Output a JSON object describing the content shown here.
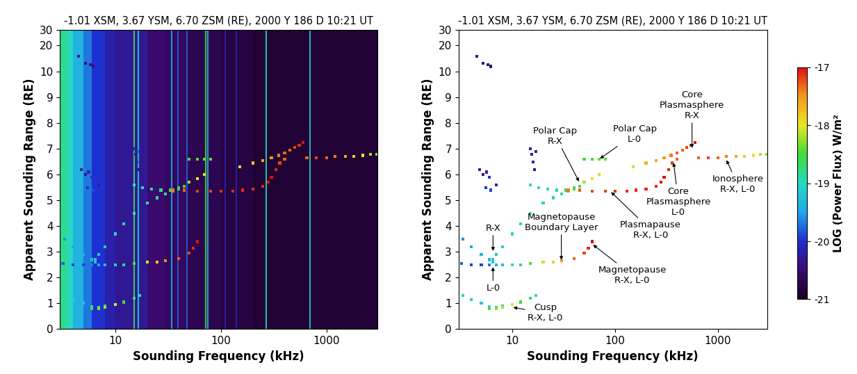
{
  "chart_data": [
    {
      "type": "heatmap",
      "title": "-1.01 XSM, 3.67 YSM, 6.70 ZSM (RE), 2000 Y 186 D 10:21 UT",
      "x_label": "Sounding Frequency (kHz)",
      "y_label": "Apparent Sounding Range (RE)",
      "log": "x",
      "xlim": [
        3,
        3000
      ],
      "ylim": [
        0,
        30
      ],
      "xticks": [
        10,
        100,
        1000
      ],
      "yticks": [
        0,
        1,
        2,
        3,
        4,
        5,
        6,
        7,
        8,
        9,
        10,
        20,
        30
      ],
      "color_range": [
        -21,
        -17
      ],
      "background": {
        "frequency_edges": [
          3,
          3.5,
          4,
          5,
          6,
          8,
          10,
          15,
          20,
          30,
          50,
          100,
          200,
          500,
          1000,
          2000,
          3000
        ],
        "values": [
          -18.8,
          -19.0,
          -19.4,
          -19.7,
          -20.0,
          -20.2,
          -20.3,
          -20.3,
          -20.5,
          -20.6,
          -20.7,
          -20.8,
          -20.9,
          -20.9,
          -20.9,
          -20.9
        ]
      },
      "interference": {
        "frequencies": [
          15,
          16.5,
          34,
          39,
          48,
          72,
          75,
          110,
          140,
          270,
          700
        ],
        "values": [
          -18.6,
          -19.2,
          -19.5,
          -19.8,
          -19.8,
          -18.5,
          -19.3,
          -20.2,
          -20.2,
          -19.0,
          -19.2
        ]
      },
      "series": [
        {
          "x": [
            3.3,
            4,
            5,
            6,
            7,
            8,
            10,
            12,
            15,
            17
          ],
          "y": [
            1.3,
            1.15,
            1.0,
            0.88,
            0.85,
            0.9,
            0.95,
            1.05,
            1.2,
            1.3
          ],
          "power": [
            -19.0,
            -19.1,
            -19.2,
            -19.0,
            -18.8,
            -18.6,
            -18.4,
            -18.5,
            -18.7,
            -18.9
          ]
        },
        {
          "x": [
            6,
            7,
            8,
            10
          ],
          "y": [
            0.8,
            0.8,
            0.85,
            0.95
          ],
          "power": [
            -18.5,
            -18.3,
            -18.2,
            -18.0
          ]
        },
        {
          "x": [
            3.2,
            4,
            5,
            6,
            7,
            8,
            10,
            12,
            15,
            20,
            25,
            30,
            40,
            50,
            55,
            60
          ],
          "y": [
            2.55,
            2.5,
            2.5,
            2.5,
            2.5,
            2.5,
            2.5,
            2.5,
            2.55,
            2.6,
            2.6,
            2.65,
            2.75,
            2.95,
            3.15,
            3.4
          ],
          "power": [
            -19.8,
            -19.9,
            -19.9,
            -19.7,
            -19.5,
            -19.3,
            -19.0,
            -18.8,
            -18.5,
            -18.1,
            -17.8,
            -17.5,
            -17.3,
            -17.2,
            -17.1,
            -17.0
          ]
        },
        {
          "x": [
            3.3,
            4,
            5,
            6,
            6.5
          ],
          "y": [
            3.5,
            3.2,
            2.9,
            2.7,
            2.6
          ],
          "power": [
            -19.6,
            -19.5,
            -19.4,
            -19.3,
            -19.2
          ]
        },
        {
          "x": [
            6.5,
            7,
            8,
            10,
            12,
            15,
            20,
            25,
            30,
            35,
            40,
            45
          ],
          "y": [
            2.7,
            2.9,
            3.2,
            3.7,
            4.1,
            4.5,
            4.9,
            5.1,
            5.25,
            5.35,
            5.45,
            5.55
          ],
          "power": [
            -19.2,
            -19.2,
            -19.1,
            -19.0,
            -19.0,
            -18.9,
            -18.9,
            -18.8,
            -18.8,
            -18.7,
            -18.6,
            -18.5
          ]
        },
        {
          "x": [
            15,
            18,
            22,
            27,
            33,
            40,
            50,
            60,
            70
          ],
          "y": [
            5.6,
            5.5,
            5.45,
            5.4,
            5.4,
            5.5,
            5.7,
            5.85,
            6.0
          ],
          "power": [
            -19.0,
            -19.0,
            -18.9,
            -18.8,
            -18.7,
            -18.5,
            -18.2,
            -18.0,
            -17.9
          ]
        },
        {
          "x": [
            35,
            45,
            60,
            80,
            100,
            130,
            160,
            200,
            250,
            280,
            300,
            330,
            360,
            400
          ],
          "y": [
            5.4,
            5.4,
            5.35,
            5.35,
            5.35,
            5.35,
            5.4,
            5.45,
            5.55,
            5.7,
            5.9,
            6.2,
            6.45,
            6.6
          ],
          "power": [
            -17.4,
            -17.3,
            -17.2,
            -17.2,
            -17.1,
            -17.1,
            -17.1,
            -17.1,
            -17.1,
            -17.0,
            -17.0,
            -17.1,
            -17.2,
            -17.3
          ]
        },
        {
          "x": [
            50,
            60,
            70,
            80
          ],
          "y": [
            6.6,
            6.6,
            6.6,
            6.6
          ],
          "power": [
            -18.5,
            -18.5,
            -18.4,
            -18.4
          ]
        },
        {
          "x": [
            150,
            200,
            250,
            300,
            350,
            400,
            450,
            500,
            550,
            600
          ],
          "y": [
            6.3,
            6.45,
            6.55,
            6.65,
            6.75,
            6.85,
            6.95,
            7.05,
            7.15,
            7.25
          ],
          "power": [
            -17.9,
            -17.7,
            -17.6,
            -17.5,
            -17.4,
            -17.3,
            -17.3,
            -17.2,
            -17.1,
            -17.0
          ]
        },
        {
          "x": [
            650,
            800,
            1000,
            1200,
            1500,
            1800,
            2200,
            2600,
            3000
          ],
          "y": [
            6.65,
            6.65,
            6.65,
            6.7,
            6.7,
            6.7,
            6.75,
            6.8,
            6.8
          ],
          "power": [
            -17.3,
            -17.2,
            -17.3,
            -17.4,
            -17.6,
            -17.8,
            -18.0,
            -18.2,
            -18.3
          ]
        },
        {
          "x": [
            4.5,
            5.2,
            5.8,
            6.2
          ],
          "y": [
            15,
            12.5,
            12,
            11.5
          ],
          "power": [
            -20.3,
            -20.5,
            -20.4,
            -20.4
          ]
        },
        {
          "x": [
            15,
            15.5,
            16,
            17,
            16.5
          ],
          "y": [
            7.0,
            6.8,
            6.5,
            6.9,
            6.2
          ],
          "power": [
            -20.2,
            -20.3,
            -20.1,
            -20.2,
            -20.4
          ]
        },
        {
          "x": [
            4.8,
            5.2,
            5.6,
            6,
            5.5,
            6.2,
            7
          ],
          "y": [
            6.2,
            6.0,
            6.1,
            5.9,
            5.5,
            5.4,
            5.6
          ],
          "power": [
            -20.2,
            -20.3,
            -20.1,
            -20.0,
            -20.0,
            -19.9,
            -20.2
          ]
        }
      ]
    },
    {
      "type": "scatter",
      "title": "-1.01 XSM, 3.67 YSM, 6.70 ZSM (RE), 2000 Y 186 D 10:21 UT",
      "x_label": "Sounding Frequency (kHz)",
      "y_label": "Apparent Sounding Range (RE)",
      "log": "x",
      "xlim": [
        3,
        3000
      ],
      "ylim": [
        0,
        30
      ],
      "xticks": [
        10,
        100,
        1000
      ],
      "yticks": [
        0,
        1,
        2,
        3,
        4,
        5,
        6,
        7,
        8,
        9,
        10,
        20,
        30
      ],
      "colorbar": {
        "label": "LOG (Power Flux) W/m²",
        "range": [
          -21,
          -17
        ],
        "ticks": [
          -17,
          -18,
          -19,
          -20,
          -21
        ]
      },
      "series": [
        {
          "x": [
            3.3,
            4,
            5,
            6,
            7,
            8,
            10,
            12,
            15,
            17
          ],
          "y": [
            1.3,
            1.15,
            1.0,
            0.88,
            0.85,
            0.9,
            0.95,
            1.05,
            1.2,
            1.3
          ],
          "power": [
            -19.0,
            -19.1,
            -19.2,
            -19.0,
            -18.8,
            -18.6,
            -18.4,
            -18.5,
            -18.7,
            -18.9
          ]
        },
        {
          "x": [
            6,
            7,
            8,
            10
          ],
          "y": [
            0.8,
            0.8,
            0.85,
            0.95
          ],
          "power": [
            -18.5,
            -18.3,
            -18.2,
            -18.0
          ]
        },
        {
          "x": [
            3.2,
            4,
            5,
            6,
            7,
            8,
            10,
            12,
            15,
            20,
            25,
            30,
            40,
            50,
            55,
            60
          ],
          "y": [
            2.55,
            2.5,
            2.5,
            2.5,
            2.5,
            2.5,
            2.5,
            2.5,
            2.55,
            2.6,
            2.6,
            2.65,
            2.75,
            2.95,
            3.15,
            3.4
          ],
          "power": [
            -19.8,
            -19.9,
            -19.9,
            -19.7,
            -19.5,
            -19.3,
            -19.0,
            -18.8,
            -18.5,
            -18.1,
            -17.8,
            -17.5,
            -17.3,
            -17.2,
            -17.1,
            -17.0
          ]
        },
        {
          "x": [
            3.3,
            4,
            5,
            6,
            6.5
          ],
          "y": [
            3.5,
            3.2,
            2.9,
            2.7,
            2.6
          ],
          "power": [
            -19.6,
            -19.5,
            -19.4,
            -19.3,
            -19.2
          ]
        },
        {
          "x": [
            6.5,
            7,
            8,
            10,
            12,
            15,
            20,
            25,
            30,
            35,
            40,
            45
          ],
          "y": [
            2.7,
            2.9,
            3.2,
            3.7,
            4.1,
            4.5,
            4.9,
            5.1,
            5.25,
            5.35,
            5.45,
            5.55
          ],
          "power": [
            -19.2,
            -19.2,
            -19.1,
            -19.0,
            -19.0,
            -18.9,
            -18.9,
            -18.8,
            -18.8,
            -18.7,
            -18.6,
            -18.5
          ]
        },
        {
          "x": [
            15,
            18,
            22,
            27,
            33,
            40,
            50,
            60,
            70
          ],
          "y": [
            5.6,
            5.5,
            5.45,
            5.4,
            5.4,
            5.5,
            5.7,
            5.85,
            6.0
          ],
          "power": [
            -19.0,
            -19.0,
            -18.9,
            -18.8,
            -18.7,
            -18.5,
            -18.2,
            -18.0,
            -17.9
          ]
        },
        {
          "x": [
            35,
            45,
            60,
            80,
            100,
            130,
            160,
            200,
            250,
            280,
            300,
            330,
            360,
            400
          ],
          "y": [
            5.4,
            5.4,
            5.35,
            5.35,
            5.35,
            5.35,
            5.4,
            5.45,
            5.55,
            5.7,
            5.9,
            6.2,
            6.45,
            6.6
          ],
          "power": [
            -17.4,
            -17.3,
            -17.2,
            -17.2,
            -17.1,
            -17.1,
            -17.1,
            -17.1,
            -17.1,
            -17.0,
            -17.0,
            -17.1,
            -17.2,
            -17.3
          ]
        },
        {
          "x": [
            50,
            60,
            70,
            80
          ],
          "y": [
            6.6,
            6.6,
            6.6,
            6.6
          ],
          "power": [
            -18.5,
            -18.5,
            -18.4,
            -18.4
          ]
        },
        {
          "x": [
            150,
            200,
            250,
            300,
            350,
            400,
            450,
            500,
            550,
            600
          ],
          "y": [
            6.3,
            6.45,
            6.55,
            6.65,
            6.75,
            6.85,
            6.95,
            7.05,
            7.15,
            7.25
          ],
          "power": [
            -17.9,
            -17.7,
            -17.6,
            -17.5,
            -17.4,
            -17.3,
            -17.3,
            -17.2,
            -17.1,
            -17.0
          ]
        },
        {
          "x": [
            650,
            800,
            1000,
            1200,
            1500,
            1800,
            2200,
            2600,
            3000
          ],
          "y": [
            6.65,
            6.65,
            6.65,
            6.7,
            6.7,
            6.7,
            6.75,
            6.8,
            6.8
          ],
          "power": [
            -17.3,
            -17.2,
            -17.3,
            -17.4,
            -17.6,
            -17.8,
            -18.0,
            -18.2,
            -18.3
          ]
        },
        {
          "x": [
            4.5,
            5.2,
            5.8,
            6.2
          ],
          "y": [
            15,
            12.5,
            12,
            11.5
          ],
          "power": [
            -20.3,
            -20.5,
            -20.4,
            -20.4
          ]
        },
        {
          "x": [
            15,
            15.5,
            16,
            17,
            16.5
          ],
          "y": [
            7.0,
            6.8,
            6.5,
            6.9,
            6.2
          ],
          "power": [
            -20.2,
            -20.3,
            -20.1,
            -20.2,
            -20.4
          ]
        },
        {
          "x": [
            4.8,
            5.2,
            5.6,
            6,
            5.5,
            6.2,
            7
          ],
          "y": [
            6.2,
            6.0,
            6.1,
            5.9,
            5.5,
            5.4,
            5.6
          ],
          "power": [
            -20.2,
            -20.3,
            -20.1,
            -20.0,
            -20.0,
            -19.9,
            -20.2
          ]
        }
      ],
      "annotations": [
        {
          "text": "Polar Cap\nR-X",
          "x": 45,
          "y": 5.7
        },
        {
          "text": "Polar Cap\nL-0",
          "x": 70,
          "y": 6.6
        },
        {
          "text": "Core\nPlasmasphere\nR-X",
          "x": 560,
          "y": 7.0
        },
        {
          "text": "Core\nPlasmasphere\nL-0",
          "x": 370,
          "y": 6.5
        },
        {
          "text": "Ionosphere\nR-X, L-0",
          "x": 1200,
          "y": 6.6
        },
        {
          "text": "Plasmapause\nR-X, L-0",
          "x": 90,
          "y": 5.35
        },
        {
          "text": "Magnetopause\nBoundary Layer",
          "x": 30,
          "y": 2.65
        },
        {
          "text": "Magnetopause\nR-X, L-0",
          "x": 60,
          "y": 3.3
        },
        {
          "text": "R-X",
          "x": 6.5,
          "y": 3.0
        },
        {
          "text": "L-0",
          "x": 6.5,
          "y": 2.45
        },
        {
          "text": "Cusp\nR-X, L-0",
          "x": 10,
          "y": 0.85
        }
      ]
    }
  ]
}
